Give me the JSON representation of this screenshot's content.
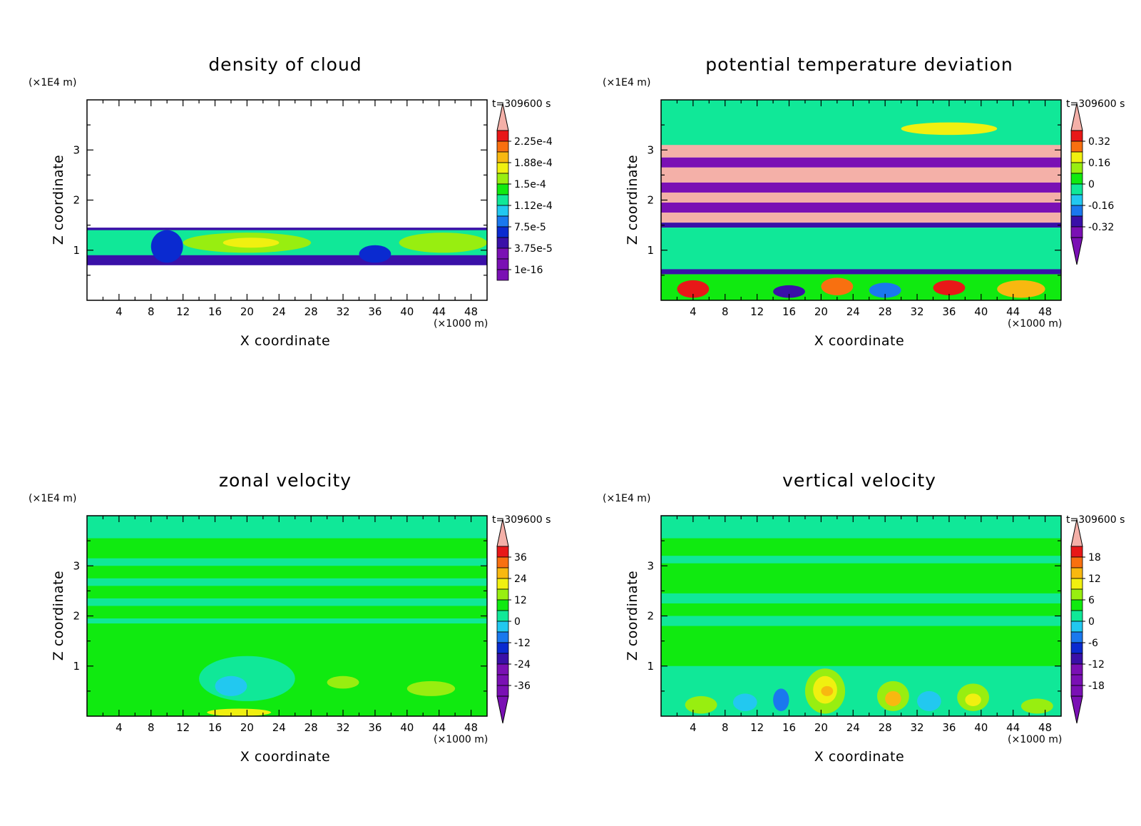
{
  "palette": [
    "#7a10b4",
    "#3a10a8",
    "#0a2ad0",
    "#1a78ee",
    "#22c8f0",
    "#10e898",
    "#10ea10",
    "#98ee10",
    "#f0f010",
    "#f8b810",
    "#f87010",
    "#e81818",
    "#f4b0a8"
  ],
  "chart_data": [
    {
      "type": "heatmap",
      "title": "density of cloud",
      "xlabel": "X coordinate",
      "ylabel": "Z coordinate",
      "x_unit": "(×1000 m)",
      "y_unit": "(×1E4 m)",
      "time_label": "t=309600 s",
      "xlim": [
        0,
        50
      ],
      "ylim": [
        0,
        4
      ],
      "x_ticks": [
        4,
        8,
        12,
        16,
        20,
        24,
        28,
        32,
        36,
        40,
        44,
        48
      ],
      "y_ticks": [
        1,
        2,
        3
      ],
      "colorbar": {
        "labels": [
          "2.25e-4",
          "1.88e-4",
          "1.5e-4",
          "1.12e-4",
          "7.5e-5",
          "3.75e-5",
          "1e-16"
        ],
        "arrows": "top"
      },
      "regions": [
        {
          "band": [
            0.7,
            1.45
          ],
          "level": 1
        },
        {
          "band": [
            0.9,
            1.4
          ],
          "level": 5
        },
        {
          "x": [
            12,
            28
          ],
          "z": [
            0.95,
            1.35
          ],
          "level": 7
        },
        {
          "x": [
            39,
            50
          ],
          "z": [
            0.95,
            1.35
          ],
          "level": 7
        },
        {
          "x": [
            17,
            24
          ],
          "z": [
            1.05,
            1.25
          ],
          "level": 8
        },
        {
          "x": [
            8,
            12
          ],
          "z": [
            0.75,
            1.4
          ],
          "level": 2
        },
        {
          "x": [
            34,
            38
          ],
          "z": [
            0.75,
            1.1
          ],
          "level": 2
        }
      ]
    },
    {
      "type": "heatmap",
      "title": "potential temperature deviation",
      "xlabel": "X coordinate",
      "ylabel": "Z coordinate",
      "x_unit": "(×1000 m)",
      "y_unit": "(×1E4 m)",
      "time_label": "t=309600 s",
      "xlim": [
        0,
        50
      ],
      "ylim": [
        0,
        4
      ],
      "x_ticks": [
        4,
        8,
        12,
        16,
        20,
        24,
        28,
        32,
        36,
        40,
        44,
        48
      ],
      "y_ticks": [
        1,
        2,
        3
      ],
      "colorbar": {
        "labels": [
          "0.32",
          "0.16",
          "0",
          "-0.16",
          "-0.32"
        ],
        "arrows": "both"
      },
      "regions": [
        {
          "band": [
            3.0,
            4.0
          ],
          "level": 5
        },
        {
          "x": [
            30,
            42
          ],
          "z": [
            3.3,
            3.55
          ],
          "level": 8
        },
        {
          "band": [
            2.85,
            3.1
          ],
          "level": 12
        },
        {
          "band": [
            2.65,
            2.85
          ],
          "level": 0
        },
        {
          "band": [
            2.35,
            2.65
          ],
          "level": 12
        },
        {
          "band": [
            2.15,
            2.35
          ],
          "level": 0
        },
        {
          "band": [
            1.95,
            2.15
          ],
          "level": 12
        },
        {
          "band": [
            1.75,
            1.95
          ],
          "level": 0
        },
        {
          "band": [
            1.55,
            1.75
          ],
          "level": 12
        },
        {
          "band": [
            1.45,
            1.55
          ],
          "level": 1
        },
        {
          "band": [
            0.6,
            1.45
          ],
          "level": 5
        },
        {
          "band": [
            0.52,
            0.62
          ],
          "level": 1
        },
        {
          "band": [
            0.0,
            0.52
          ],
          "level": 6
        },
        {
          "x": [
            2,
            6
          ],
          "z": [
            0.05,
            0.4
          ],
          "level": 11
        },
        {
          "x": [
            14,
            18
          ],
          "z": [
            0.05,
            0.3
          ],
          "level": 1
        },
        {
          "x": [
            20,
            24
          ],
          "z": [
            0.1,
            0.45
          ],
          "level": 10
        },
        {
          "x": [
            26,
            30
          ],
          "z": [
            0.05,
            0.35
          ],
          "level": 3
        },
        {
          "x": [
            34,
            38
          ],
          "z": [
            0.1,
            0.4
          ],
          "level": 11
        },
        {
          "x": [
            42,
            48
          ],
          "z": [
            0.05,
            0.4
          ],
          "level": 9
        }
      ]
    },
    {
      "type": "heatmap",
      "title": "zonal velocity",
      "xlabel": "X coordinate",
      "ylabel": "Z coordinate",
      "x_unit": "(×1000 m)",
      "y_unit": "(×1E4 m)",
      "time_label": "t=309600 s",
      "xlim": [
        0,
        50
      ],
      "ylim": [
        0,
        4
      ],
      "x_ticks": [
        4,
        8,
        12,
        16,
        20,
        24,
        28,
        32,
        36,
        40,
        44,
        48
      ],
      "y_ticks": [
        1,
        2,
        3
      ],
      "colorbar": {
        "labels": [
          "36",
          "24",
          "12",
          "0",
          "-12",
          "-24",
          "-36"
        ],
        "arrows": "both"
      },
      "regions": [
        {
          "band": [
            0.0,
            4.0
          ],
          "level": 6
        },
        {
          "band": [
            3.55,
            4.0
          ],
          "level": 5
        },
        {
          "band": [
            3.0,
            3.15
          ],
          "level": 5
        },
        {
          "band": [
            2.6,
            2.75
          ],
          "level": 5
        },
        {
          "band": [
            2.2,
            2.35
          ],
          "level": 5
        },
        {
          "band": [
            1.85,
            1.95
          ],
          "level": 5
        },
        {
          "x": [
            14,
            26
          ],
          "z": [
            0.3,
            1.2
          ],
          "level": 5
        },
        {
          "x": [
            16,
            20
          ],
          "z": [
            0.4,
            0.8
          ],
          "level": 4
        },
        {
          "x": [
            40,
            46
          ],
          "z": [
            0.4,
            0.7
          ],
          "level": 7
        },
        {
          "x": [
            30,
            34
          ],
          "z": [
            0.55,
            0.8
          ],
          "level": 7
        },
        {
          "x": [
            15,
            23
          ],
          "z": [
            0.0,
            0.15
          ],
          "level": 8
        }
      ]
    },
    {
      "type": "heatmap",
      "title": "vertical velocity",
      "xlabel": "X coordinate",
      "ylabel": "Z coordinate",
      "x_unit": "(×1000 m)",
      "y_unit": "(×1E4 m)",
      "time_label": "t=309600 s",
      "xlim": [
        0,
        50
      ],
      "ylim": [
        0,
        4
      ],
      "x_ticks": [
        4,
        8,
        12,
        16,
        20,
        24,
        28,
        32,
        36,
        40,
        44,
        48
      ],
      "y_ticks": [
        1,
        2,
        3
      ],
      "colorbar": {
        "labels": [
          "18",
          "12",
          "6",
          "0",
          "-6",
          "-12",
          "-18"
        ],
        "arrows": "both"
      },
      "regions": [
        {
          "band": [
            0.0,
            4.0
          ],
          "level": 6
        },
        {
          "band": [
            3.55,
            4.0
          ],
          "level": 5
        },
        {
          "band": [
            3.05,
            3.2
          ],
          "level": 5
        },
        {
          "band": [
            2.25,
            2.45
          ],
          "level": 5
        },
        {
          "band": [
            1.8,
            2.0
          ],
          "level": 5
        },
        {
          "band": [
            0.0,
            1.0
          ],
          "level": 5
        },
        {
          "x": [
            18,
            23
          ],
          "z": [
            0.05,
            0.95
          ],
          "level": 7
        },
        {
          "x": [
            19,
            22
          ],
          "z": [
            0.25,
            0.8
          ],
          "level": 8
        },
        {
          "x": [
            20,
            21.5
          ],
          "z": [
            0.4,
            0.6
          ],
          "level": 9
        },
        {
          "x": [
            27,
            31
          ],
          "z": [
            0.1,
            0.7
          ],
          "level": 7
        },
        {
          "x": [
            28,
            30
          ],
          "z": [
            0.2,
            0.5
          ],
          "level": 9
        },
        {
          "x": [
            37,
            41
          ],
          "z": [
            0.1,
            0.65
          ],
          "level": 7
        },
        {
          "x": [
            38,
            40
          ],
          "z": [
            0.2,
            0.45
          ],
          "level": 8
        },
        {
          "x": [
            3,
            7
          ],
          "z": [
            0.05,
            0.4
          ],
          "level": 7
        },
        {
          "x": [
            45,
            49
          ],
          "z": [
            0.05,
            0.35
          ],
          "level": 7
        },
        {
          "x": [
            14,
            16
          ],
          "z": [
            0.1,
            0.55
          ],
          "level": 3
        },
        {
          "x": [
            32,
            35
          ],
          "z": [
            0.1,
            0.5
          ],
          "level": 4
        },
        {
          "x": [
            9,
            12
          ],
          "z": [
            0.1,
            0.45
          ],
          "level": 4
        }
      ]
    }
  ]
}
